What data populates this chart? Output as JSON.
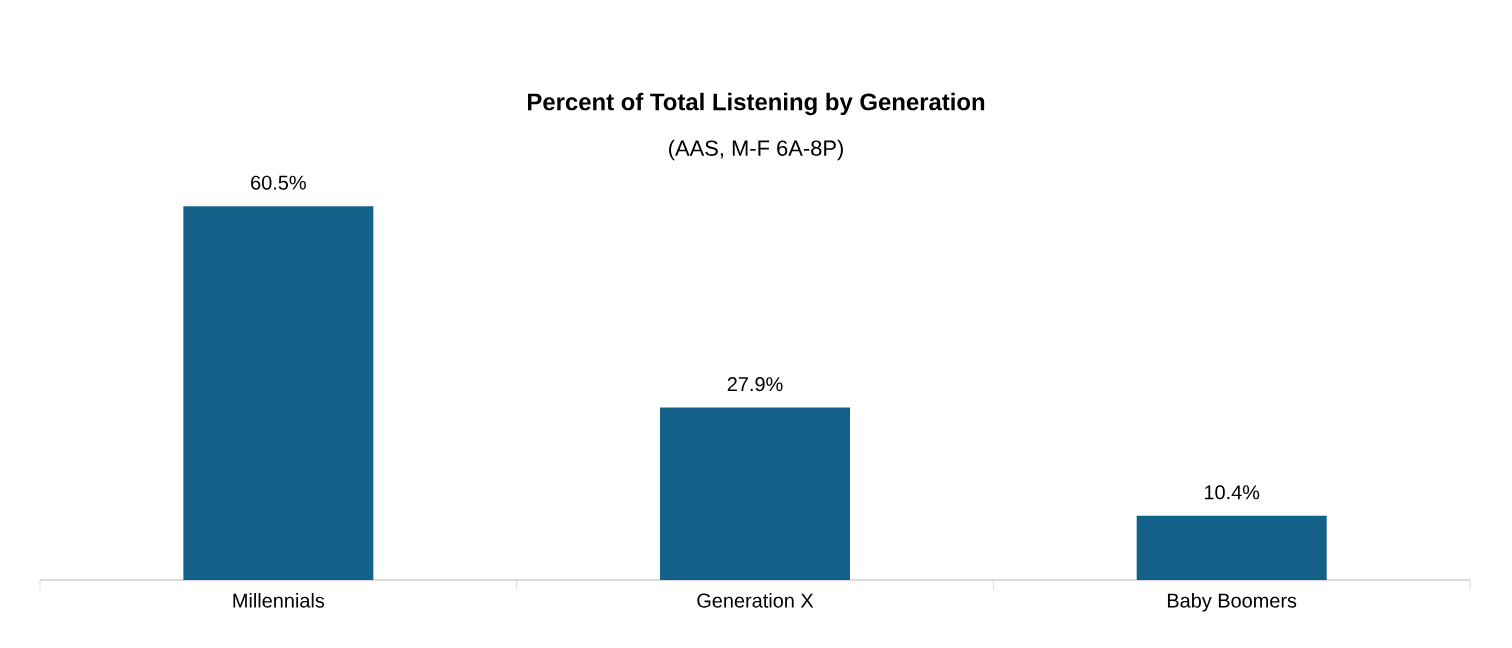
{
  "chart_data": {
    "type": "bar",
    "title": "Percent of Total Listening by Generation",
    "subtitle": "(AAS, M-F 6A-8P)",
    "categories": [
      "Millennials",
      "Generation X",
      "Baby Boomers"
    ],
    "values": [
      60.5,
      27.9,
      10.4
    ],
    "value_labels": [
      "60.5%",
      "27.9%",
      "10.4%"
    ],
    "color": "#14628a"
  }
}
